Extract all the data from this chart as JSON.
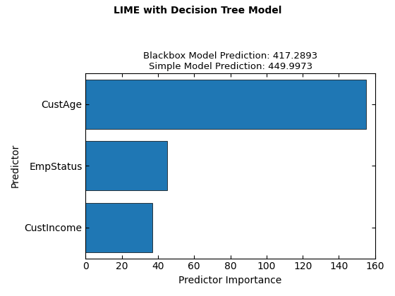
{
  "title": "LIME with Decision Tree Model",
  "subtitle_line1": "Blackbox Model Prediction: 417.2893",
  "subtitle_line2": "Simple Model Prediction: 449.9973",
  "xlabel": "Predictor Importance",
  "ylabel": "Predictor",
  "categories": [
    "CustIncome",
    "EmpStatus",
    "CustAge"
  ],
  "values": [
    37,
    45,
    155
  ],
  "bar_color": "#1f77b4",
  "xlim": [
    0,
    160
  ],
  "xticks": [
    0,
    20,
    40,
    60,
    80,
    100,
    120,
    140,
    160
  ],
  "background_color": "#ffffff",
  "bar_edgecolor": "#000000",
  "bar_height": 0.8
}
